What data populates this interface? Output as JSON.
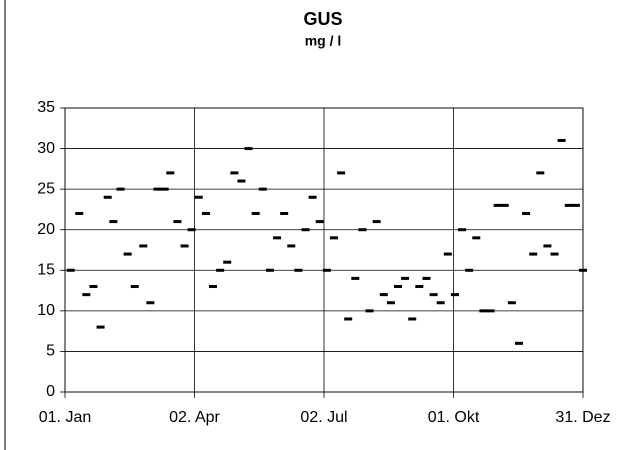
{
  "chart_data": {
    "type": "scatter",
    "title": "GUS",
    "subtitle": "mg / l",
    "x": [
      5,
      11,
      16,
      21,
      26,
      31,
      35,
      40,
      45,
      50,
      56,
      61,
      66,
      71,
      75,
      80,
      85,
      90,
      95,
      100,
      105,
      110,
      115,
      120,
      125,
      130,
      135,
      140,
      145,
      150,
      155,
      160,
      165,
      170,
      175,
      180,
      185,
      190,
      195,
      200,
      205,
      210,
      215,
      220,
      225,
      230,
      235,
      240,
      245,
      250,
      255,
      260,
      265,
      270,
      275,
      280,
      285,
      290,
      295,
      300,
      305,
      310,
      315,
      320,
      325,
      330,
      335,
      340,
      345,
      350,
      355,
      360,
      365
    ],
    "values": [
      15,
      22,
      12,
      13,
      8,
      24,
      21,
      25,
      17,
      13,
      18,
      11,
      25,
      25,
      27,
      21,
      18,
      20,
      24,
      22,
      13,
      15,
      16,
      27,
      26,
      30,
      22,
      25,
      15,
      19,
      22,
      18,
      15,
      20,
      24,
      21,
      15,
      19,
      27,
      9,
      14,
      20,
      10,
      21,
      12,
      11,
      13,
      14,
      9,
      13,
      14,
      12,
      11,
      17,
      12,
      20,
      15,
      19,
      10,
      10,
      23,
      23,
      11,
      6,
      22,
      17,
      27,
      18,
      17,
      31,
      23,
      23,
      15
    ],
    "color": "#000000",
    "xlim": [
      1,
      365
    ],
    "xticks": [
      {
        "value": 1,
        "label": "01. Jan"
      },
      {
        "value": 92,
        "label": "02. Apr"
      },
      {
        "value": 183,
        "label": "02. Jul"
      },
      {
        "value": 274,
        "label": "01. Okt"
      },
      {
        "value": 365,
        "label": "31. Dez"
      }
    ],
    "ylim": [
      0,
      35
    ],
    "yticks": [
      0,
      5,
      10,
      15,
      20,
      25,
      30,
      35
    ],
    "grid": true
  }
}
